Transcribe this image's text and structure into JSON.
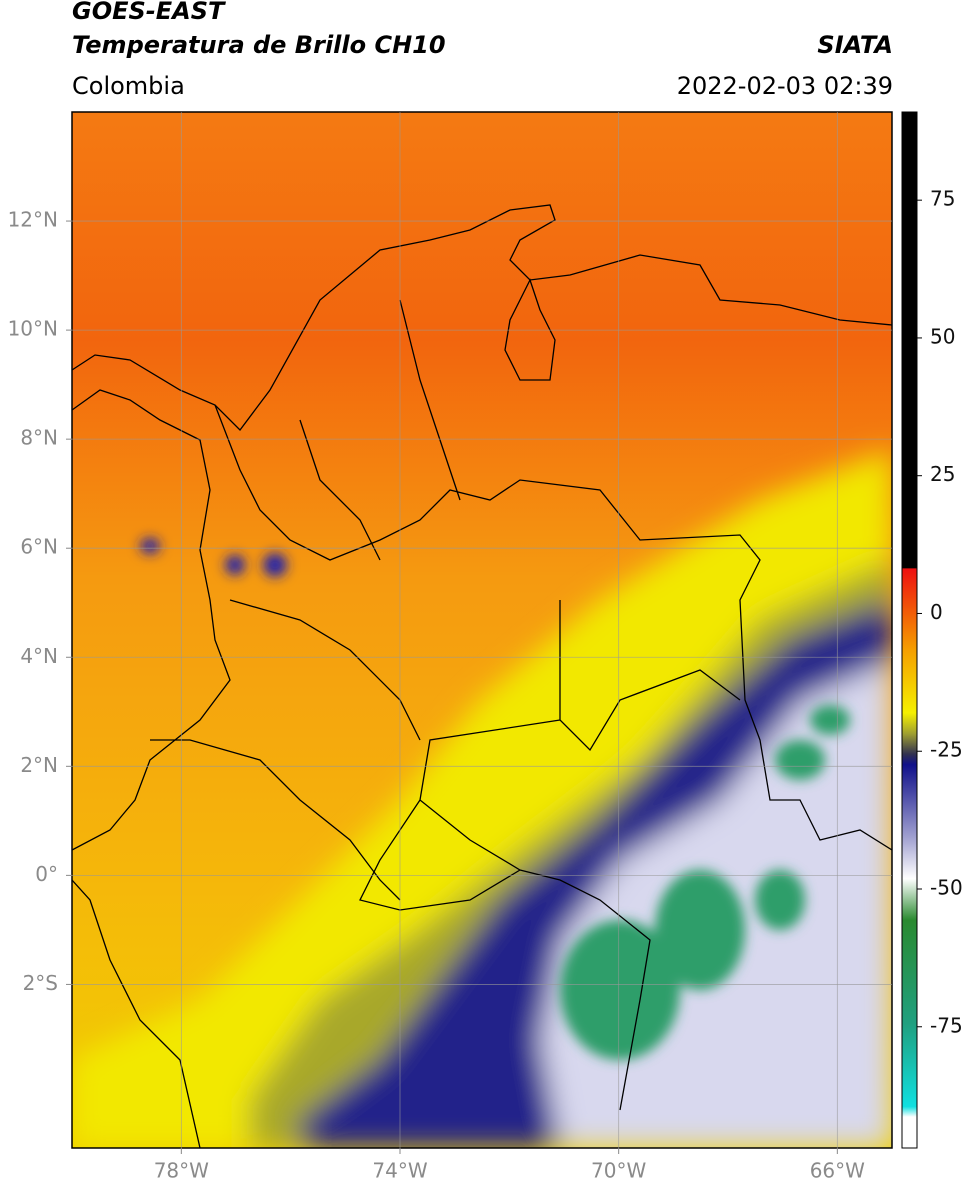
{
  "header": {
    "title": "GOES-EAST",
    "subtitle": "Temperatura de Brillo CH10",
    "source": "SIATA",
    "region": "Colombia",
    "timestamp": "2022-02-03 02:39"
  },
  "map": {
    "xlim": [
      -80,
      -65
    ],
    "ylim": [
      -5,
      14
    ],
    "xticks": [
      {
        "value": -78,
        "label": "78°W"
      },
      {
        "value": -74,
        "label": "74°W"
      },
      {
        "value": -70,
        "label": "70°W"
      },
      {
        "value": -66,
        "label": "66°W"
      }
    ],
    "yticks": [
      {
        "value": 12,
        "label": "12°N"
      },
      {
        "value": 10,
        "label": "10°N"
      },
      {
        "value": 8,
        "label": "8°N"
      },
      {
        "value": 6,
        "label": "6°N"
      },
      {
        "value": 4,
        "label": "4°N"
      },
      {
        "value": 2,
        "label": "2°N"
      },
      {
        "value": 0,
        "label": "0°"
      },
      {
        "value": -2,
        "label": "2°S"
      }
    ]
  },
  "colorbar": {
    "lim": [
      -97,
      91
    ],
    "ticks": [
      75,
      50,
      25,
      0,
      -25,
      -50,
      -75
    ]
  }
}
